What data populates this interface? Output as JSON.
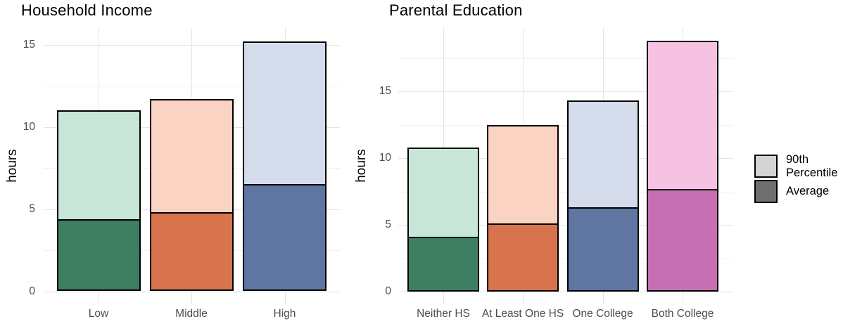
{
  "figure": {
    "background": "#FFFFFF"
  },
  "chart_data": [
    {
      "type": "bar",
      "bar_style": "overlay",
      "title": "Household Income",
      "xlabel": "",
      "ylabel": "hours",
      "categories": [
        "Low",
        "Middle",
        "High"
      ],
      "series": [
        {
          "name": "90th Percentile",
          "values": [
            11.0,
            11.7,
            15.2
          ]
        },
        {
          "name": "Average",
          "values": [
            4.4,
            4.8,
            6.5
          ]
        }
      ],
      "yticks": [
        0,
        5,
        10,
        15
      ],
      "ylim": [
        0,
        16
      ],
      "grid": true,
      "legend_position": "none",
      "colors": {
        "light": [
          "#C8E6D7",
          "#FBD3C3",
          "#D4DBEB"
        ],
        "dark": [
          "#3E7E63",
          "#D7744E",
          "#5E76A1"
        ]
      }
    },
    {
      "type": "bar",
      "bar_style": "overlay",
      "title": "Parental Education",
      "xlabel": "",
      "ylabel": "hours",
      "categories": [
        "Neither HS",
        "At Least One HS",
        "One College",
        "Both College"
      ],
      "series": [
        {
          "name": "90th Percentile",
          "values": [
            10.8,
            12.5,
            14.3,
            18.8
          ]
        },
        {
          "name": "Average",
          "values": [
            4.1,
            5.1,
            6.3,
            7.7
          ]
        }
      ],
      "yticks": [
        0,
        5,
        10,
        15
      ],
      "ylim": [
        0,
        19.7
      ],
      "grid": true,
      "legend_position": "right",
      "colors": {
        "light": [
          "#C8E6D7",
          "#FBD3C3",
          "#D4DBEB",
          "#F5C3E1"
        ],
        "dark": [
          "#3E7E63",
          "#D7744E",
          "#5E76A1",
          "#C76FB3"
        ]
      }
    }
  ],
  "legend": {
    "items": [
      {
        "label": "90th Percentile",
        "swatch": "#D4D4D4"
      },
      {
        "label": "Average",
        "swatch": "#6F6F6F"
      }
    ]
  },
  "style_colors": {
    "axis_text": "#4D4D4D",
    "grid_major": "#E4E4E4",
    "grid_minor": "#F1F1F1",
    "bar_outline": "#000000"
  }
}
